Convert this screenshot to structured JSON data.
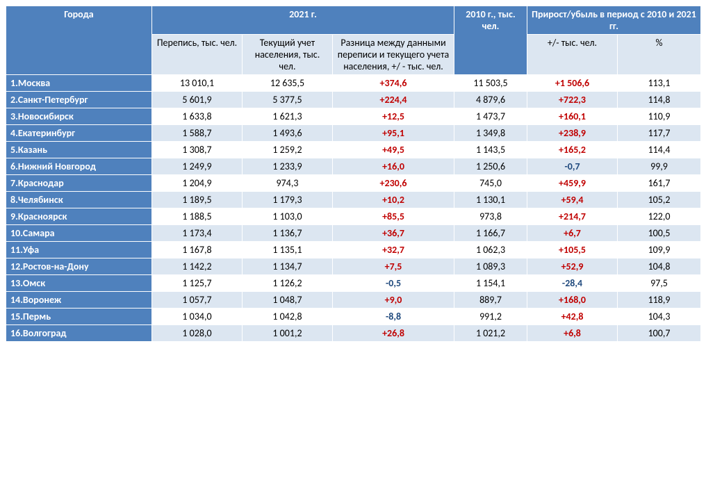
{
  "colors": {
    "header_bg": "#4f81bd",
    "header_fg": "#ffffff",
    "sub_bg": "#dce6f1",
    "band_odd": "#ffffff",
    "band_even": "#dce6f1",
    "positive": "#c00000",
    "negative": "#1f497d",
    "border": "#ffffff"
  },
  "header": {
    "cities": "Города",
    "y2021": "2021 г.",
    "y2010": "2010 г., тыс. чел.",
    "change": "Прирост/убыль в период с 2010 и 2021 гг.",
    "census": "Перепись, тыс. чел.",
    "current": "Текущий учет населения, тыс. чел.",
    "diff": "Разница между данными переписи и текущего учета населения, +/ - тыс. чел.",
    "chg_abs": "+/- тыс. чел.",
    "chg_pct": "%"
  },
  "rows": [
    {
      "label": "1.Москва",
      "census": "13 010,1",
      "current": "12 635,5",
      "diff": "+374,6",
      "diff_sign": "pos",
      "y2010": "11 503,5",
      "chg": "+1 506,6",
      "chg_sign": "pos",
      "pct": "113,1"
    },
    {
      "label": "2.Санкт-Петербург",
      "census": "5 601,9",
      "current": "5 377,5",
      "diff": "+224,4",
      "diff_sign": "pos",
      "y2010": "4 879,6",
      "chg": "+722,3",
      "chg_sign": "pos",
      "pct": "114,8"
    },
    {
      "label": "3.Новосибирск",
      "census": "1 633,8",
      "current": "1 621,3",
      "diff": "+12,5",
      "diff_sign": "pos",
      "y2010": "1 473,7",
      "chg": "+160,1",
      "chg_sign": "pos",
      "pct": "110,9"
    },
    {
      "label": "4.Екатеринбург",
      "census": "1 588,7",
      "current": "1 493,6",
      "diff": "+95,1",
      "diff_sign": "pos",
      "y2010": "1 349,8",
      "chg": "+238,9",
      "chg_sign": "pos",
      "pct": "117,7"
    },
    {
      "label": "5.Казань",
      "census": "1 308,7",
      "current": "1 259,2",
      "diff": "+49,5",
      "diff_sign": "pos",
      "y2010": "1 143,5",
      "chg": "+165,2",
      "chg_sign": "pos",
      "pct": "114,4"
    },
    {
      "label": "6.Нижний Новгород",
      "census": "1 249,9",
      "current": "1 233,9",
      "diff": "+16,0",
      "diff_sign": "pos",
      "y2010": "1 250,6",
      "chg": "-0,7",
      "chg_sign": "neg",
      "pct": "99,9"
    },
    {
      "label": "7.Краснодар",
      "census": "1 204,9",
      "current": "974,3",
      "diff": "+230,6",
      "diff_sign": "pos",
      "y2010": "745,0",
      "chg": "+459,9",
      "chg_sign": "pos",
      "pct": "161,7"
    },
    {
      "label": "8.Челябинск",
      "census": "1 189,5",
      "current": "1 179,3",
      "diff": "+10,2",
      "diff_sign": "pos",
      "y2010": "1 130,1",
      "chg": "+59,4",
      "chg_sign": "pos",
      "pct": "105,2"
    },
    {
      "label": "9.Красноярск",
      "census": "1 188,5",
      "current": "1 103,0",
      "diff": "+85,5",
      "diff_sign": "pos",
      "y2010": "973,8",
      "chg": "+214,7",
      "chg_sign": "pos",
      "pct": "122,0"
    },
    {
      "label": "10.Самара",
      "census": "1 173,4",
      "current": "1 136,7",
      "diff": "+36,7",
      "diff_sign": "pos",
      "y2010": "1 166,7",
      "chg": "+6,7",
      "chg_sign": "pos",
      "pct": "100,5"
    },
    {
      "label": "11.Уфа",
      "census": "1 167,8",
      "current": "1 135,1",
      "diff": "+32,7",
      "diff_sign": "pos",
      "y2010": "1 062,3",
      "chg": "+105,5",
      "chg_sign": "pos",
      "pct": "109,9"
    },
    {
      "label": "12.Ростов-на-Дону",
      "census": "1 142,2",
      "current": "1 134,7",
      "diff": "+7,5",
      "diff_sign": "pos",
      "y2010": "1 089,3",
      "chg": "+52,9",
      "chg_sign": "pos",
      "pct": "104,8"
    },
    {
      "label": "13.Омск",
      "census": "1 125,7",
      "current": "1 126,2",
      "diff": "-0,5",
      "diff_sign": "neg",
      "y2010": "1 154,1",
      "chg": "-28,4",
      "chg_sign": "neg",
      "pct": "97,5"
    },
    {
      "label": "14.Воронеж",
      "census": "1 057,7",
      "current": "1 048,7",
      "diff": "+9,0",
      "diff_sign": "pos",
      "y2010": "889,7",
      "chg": "+168,0",
      "chg_sign": "pos",
      "pct": "118,9"
    },
    {
      "label": "15.Пермь",
      "census": "1 034,0",
      "current": "1 042,8",
      "diff": "-8,8",
      "diff_sign": "neg",
      "y2010": "991,2",
      "chg": "+42,8",
      "chg_sign": "pos",
      "pct": "104,3"
    },
    {
      "label": "16.Волгоград",
      "census": "1 028,0",
      "current": "1 001,2",
      "diff": "+26,8",
      "diff_sign": "pos",
      "y2010": "1 021,2",
      "chg": "+6,8",
      "chg_sign": "pos",
      "pct": "100,7"
    }
  ]
}
